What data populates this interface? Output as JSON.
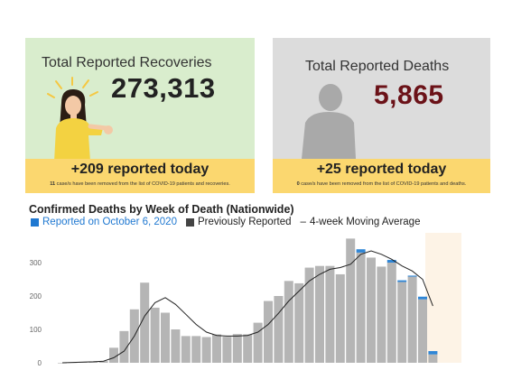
{
  "recoveries": {
    "title": "Total Reported Recoveries",
    "total": "273,313",
    "today": "+209 reported today",
    "note_count": "11",
    "note_text": " case/s have been removed from the list of COVID-19 patients and recoveries.",
    "colors": {
      "bg": "#d9edcd",
      "footer": "#fbd76f"
    }
  },
  "deaths": {
    "title": "Total Reported Deaths",
    "total": "5,865",
    "today": "+25 reported today",
    "note_count": "0",
    "note_text": " case/s have been removed from the list of COVID-19 patients and deaths.",
    "colors": {
      "bg": "#dcdcdc",
      "number": "#6b1218"
    }
  },
  "chart_data": {
    "type": "bar",
    "title": "Confirmed Deaths by Week of Death (Nationwide)",
    "legend": [
      {
        "label": "Reported on October 6, 2020",
        "color": "#1f78d1",
        "kind": "swatch"
      },
      {
        "label": "Previously Reported",
        "color": "#444444",
        "kind": "swatch"
      },
      {
        "label": "4-week Moving Average",
        "color": "#222222",
        "kind": "line"
      }
    ],
    "legend_position": "top-left",
    "y_ticks": [
      "0",
      "100",
      "200",
      "300"
    ],
    "ylim": [
      0,
      400
    ],
    "grid": false,
    "previously_reported": [
      0,
      1,
      2,
      3,
      5,
      45,
      95,
      160,
      240,
      165,
      150,
      100,
      80,
      80,
      77,
      85,
      78,
      86,
      85,
      120,
      185,
      200,
      245,
      238,
      285,
      290,
      290,
      265,
      372,
      330,
      315,
      288,
      300,
      242,
      258,
      190,
      25
    ],
    "reported_on_date": [
      0,
      0,
      0,
      0,
      0,
      0,
      0,
      0,
      0,
      0,
      0,
      0,
      0,
      0,
      0,
      0,
      0,
      0,
      0,
      0,
      0,
      0,
      0,
      0,
      0,
      0,
      0,
      0,
      0,
      10,
      0,
      0,
      8,
      5,
      3,
      8,
      10
    ],
    "moving_average": [
      0,
      1,
      2,
      3,
      5,
      15,
      35,
      80,
      140,
      180,
      195,
      175,
      145,
      115,
      92,
      82,
      80,
      80,
      82,
      92,
      115,
      148,
      185,
      215,
      245,
      265,
      280,
      285,
      295,
      325,
      335,
      325,
      310,
      290,
      275,
      250,
      170
    ]
  }
}
